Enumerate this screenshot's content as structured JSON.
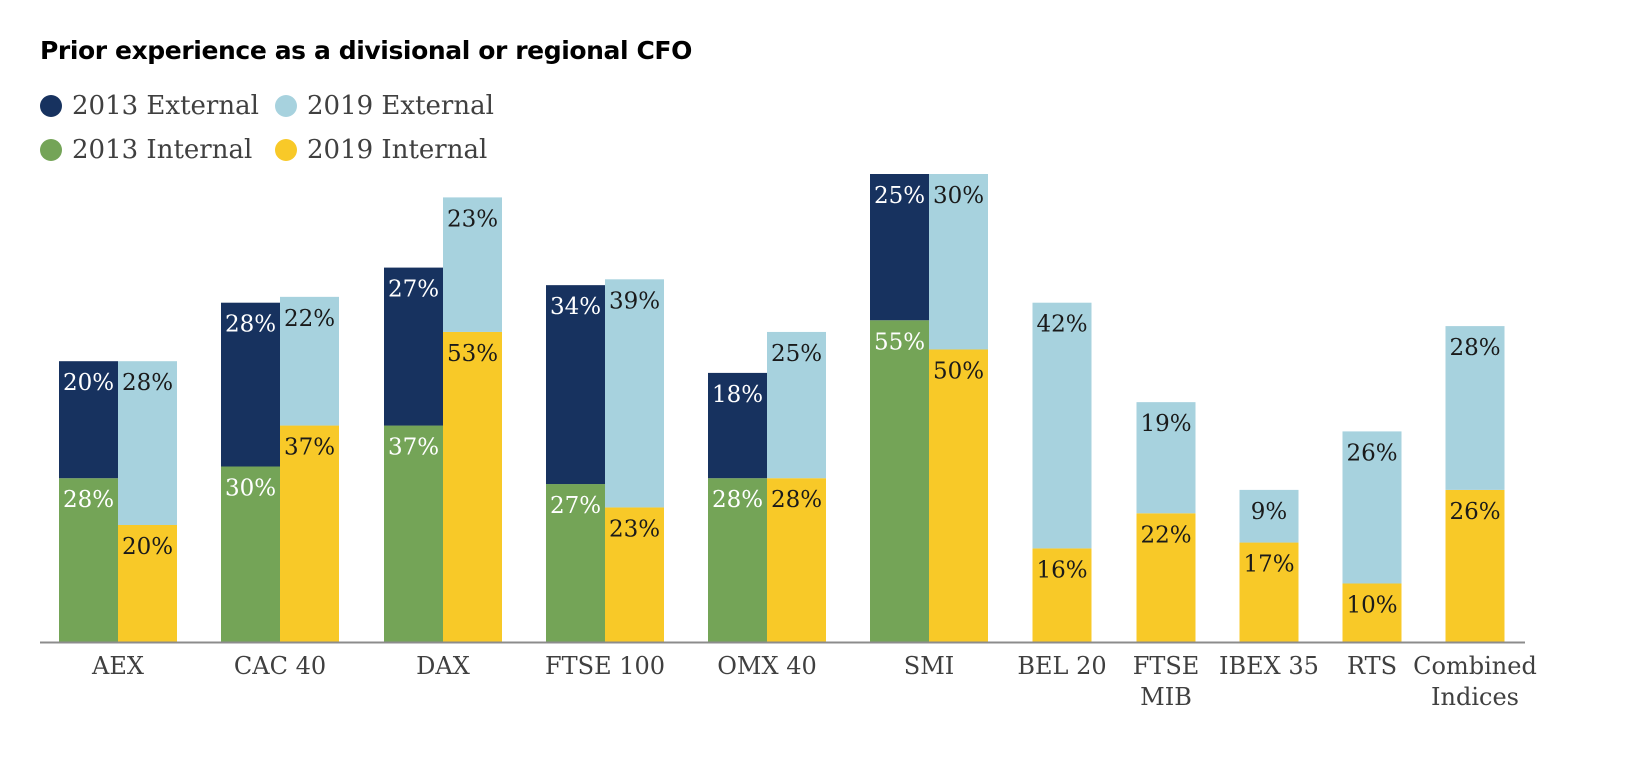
{
  "colors": {
    "e2013": "#17325f",
    "i2013": "#74a457",
    "e2019": "#a7d2de",
    "i2019": "#f8c928",
    "axis": "#8c8c8c",
    "label": "#404040"
  },
  "chart_data": {
    "type": "bar",
    "stacked": true,
    "title": "Prior experience as a divisional or regional CFO",
    "legend_position": "top-left",
    "grid": false,
    "ylim": [
      0,
      90
    ],
    "categories": [
      "AEX",
      "CAC 40",
      "DAX",
      "FTSE 100",
      "OMX 40",
      "SMI",
      "BEL 20",
      "FTSE MIB",
      "IBEX 35",
      "RTS",
      "Combined Indices"
    ],
    "category_lines": [
      [
        "AEX"
      ],
      [
        "CAC 40"
      ],
      [
        "DAX"
      ],
      [
        "FTSE 100"
      ],
      [
        "OMX 40"
      ],
      [
        "SMI"
      ],
      [
        "BEL 20"
      ],
      [
        "FTSE",
        "MIB"
      ],
      [
        "IBEX 35"
      ],
      [
        "RTS"
      ],
      [
        "Combined",
        "Indices"
      ]
    ],
    "series": [
      {
        "name": "2013 External",
        "key": "e2013",
        "year": "2013",
        "stack": "2013",
        "values": [
          20,
          28,
          27,
          34,
          18,
          25,
          null,
          null,
          null,
          null,
          null
        ]
      },
      {
        "name": "2013 Internal",
        "key": "i2013",
        "year": "2013",
        "stack": "2013",
        "values": [
          28,
          30,
          37,
          27,
          28,
          55,
          null,
          null,
          null,
          null,
          null
        ]
      },
      {
        "name": "2019 External",
        "key": "e2019",
        "year": "2019",
        "stack": "2019",
        "values": [
          28,
          22,
          23,
          39,
          25,
          30,
          42,
          19,
          9,
          26,
          28
        ]
      },
      {
        "name": "2019 Internal",
        "key": "i2019",
        "year": "2019",
        "stack": "2019",
        "values": [
          20,
          37,
          53,
          23,
          28,
          50,
          16,
          22,
          17,
          10,
          26
        ]
      }
    ]
  }
}
